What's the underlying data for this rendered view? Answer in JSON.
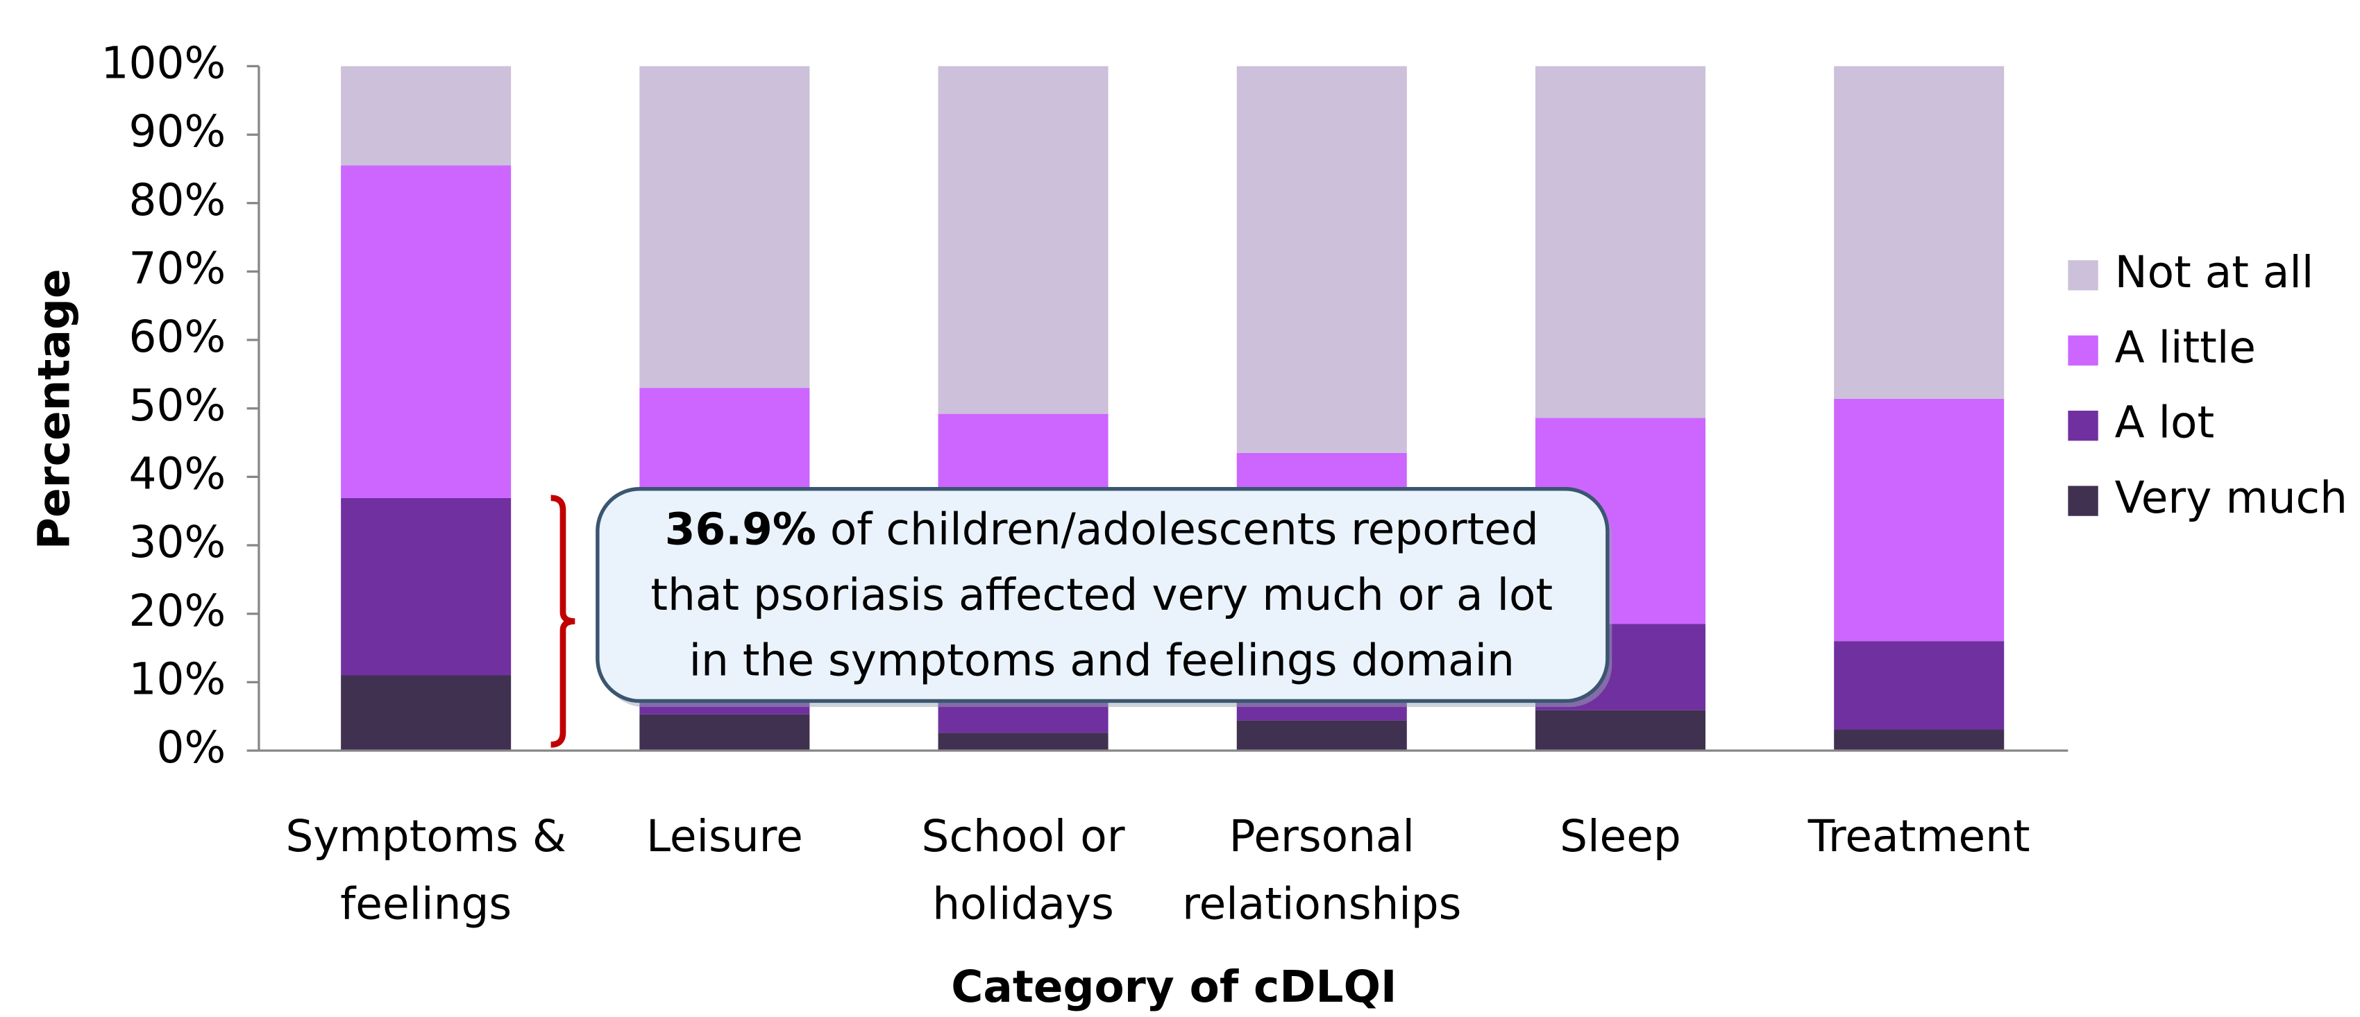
{
  "chart_data": {
    "type": "stacked_bar",
    "y_label": "Percentage",
    "x_label": "Category of cDLQI",
    "categories": [
      [
        "Symptoms &",
        "feelings"
      ],
      [
        "Leisure"
      ],
      [
        "School or",
        "holidays"
      ],
      [
        "Personal",
        "relationships"
      ],
      [
        "Sleep"
      ],
      [
        "Treatment"
      ]
    ],
    "series": [
      {
        "name": "Very much",
        "color": "#403151",
        "values": [
          11.0,
          5.3,
          2.6,
          4.4,
          5.9,
          3.1
        ]
      },
      {
        "name": "A lot",
        "color": "#7030a0",
        "values": [
          25.9,
          1.8,
          6.0,
          3.6,
          12.6,
          12.9
        ]
      },
      {
        "name": "A little",
        "color": "#cc66ff",
        "values": [
          48.6,
          45.9,
          40.6,
          35.5,
          30.1,
          35.4
        ]
      },
      {
        "name": "Not at all",
        "color": "#ccc0da",
        "values": [
          14.5,
          47.0,
          50.8,
          56.5,
          51.4,
          48.6
        ]
      }
    ],
    "ylim": [
      0,
      100
    ],
    "yticks": [
      {
        "value": 0,
        "label": "0%"
      },
      {
        "value": 10,
        "label": "10%"
      },
      {
        "value": 20,
        "label": "20%"
      },
      {
        "value": 30,
        "label": "30%"
      },
      {
        "value": 40,
        "label": "40%"
      },
      {
        "value": 50,
        "label": "50%"
      },
      {
        "value": 60,
        "label": "60%"
      },
      {
        "value": 70,
        "label": "70%"
      },
      {
        "value": 80,
        "label": "80%"
      },
      {
        "value": 90,
        "label": "90%"
      },
      {
        "value": 100,
        "label": "100%"
      }
    ],
    "legend": "right",
    "annotation": {
      "highlight": "36.9%",
      "lines": [
        " of children/adolescents reported",
        "that psoriasis affected very much or a lot",
        "in the symptoms and feelings domain"
      ]
    }
  }
}
